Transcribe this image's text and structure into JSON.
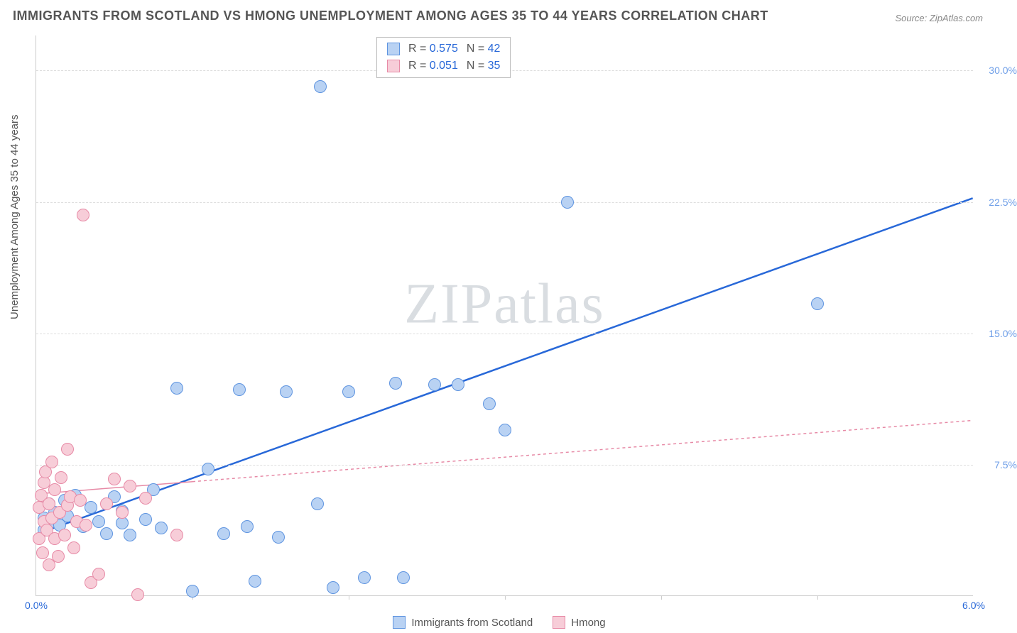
{
  "title": "IMMIGRANTS FROM SCOTLAND VS HMONG UNEMPLOYMENT AMONG AGES 35 TO 44 YEARS CORRELATION CHART",
  "source": "Source: ZipAtlas.com",
  "ylabel": "Unemployment Among Ages 35 to 44 years",
  "watermark_a": "ZIP",
  "watermark_b": "atlas",
  "chart": {
    "type": "scatter",
    "xlim": [
      0,
      6
    ],
    "ylim": [
      0,
      32
    ],
    "background_color": "#ffffff",
    "grid_color": "#dddddd",
    "axis_color": "#cccccc",
    "y_ticks": [
      {
        "v": 7.5,
        "label": "7.5%"
      },
      {
        "v": 15.0,
        "label": "15.0%"
      },
      {
        "v": 22.5,
        "label": "22.5%"
      },
      {
        "v": 30.0,
        "label": "30.0%"
      }
    ],
    "x_tick_marks": [
      1,
      2,
      3,
      4,
      5
    ],
    "x_labels": [
      {
        "v": 0,
        "label": "0.0%",
        "color": "#2868d8"
      },
      {
        "v": 6,
        "label": "6.0%",
        "color": "#2868d8"
      }
    ],
    "ytick_color": "#6f9fe8",
    "point_radius": 9,
    "series": [
      {
        "name": "Immigrants from Scotland",
        "fill": "#b9d2f3",
        "stroke": "#5e94e0",
        "line_color": "#2868d8",
        "line_dash": "none",
        "line_width": 2.5,
        "R": "0.575",
        "N": "42",
        "trend": {
          "x1": 0.0,
          "y1": 3.5,
          "x2": 6.0,
          "y2": 22.7
        },
        "points": [
          [
            0.05,
            5.2
          ],
          [
            0.05,
            4.5
          ],
          [
            0.08,
            6.0
          ],
          [
            0.1,
            5.0
          ],
          [
            0.12,
            5.5
          ],
          [
            0.15,
            4.8
          ],
          [
            0.18,
            6.2
          ],
          [
            0.2,
            5.3
          ],
          [
            0.25,
            6.5
          ],
          [
            0.3,
            4.7
          ],
          [
            0.35,
            5.8
          ],
          [
            0.4,
            5.0
          ],
          [
            0.45,
            4.3
          ],
          [
            0.5,
            6.4
          ],
          [
            0.55,
            4.9
          ],
          [
            0.55,
            5.6
          ],
          [
            0.6,
            4.2
          ],
          [
            0.7,
            5.1
          ],
          [
            0.75,
            6.8
          ],
          [
            0.8,
            4.6
          ],
          [
            0.9,
            12.6
          ],
          [
            1.0,
            1.0
          ],
          [
            1.1,
            8.0
          ],
          [
            1.2,
            4.3
          ],
          [
            1.3,
            12.5
          ],
          [
            1.35,
            4.7
          ],
          [
            1.4,
            1.6
          ],
          [
            1.55,
            4.1
          ],
          [
            1.6,
            12.4
          ],
          [
            1.8,
            6.0
          ],
          [
            1.82,
            29.8
          ],
          [
            1.9,
            1.2
          ],
          [
            2.0,
            12.4
          ],
          [
            2.1,
            1.8
          ],
          [
            2.3,
            12.9
          ],
          [
            2.35,
            1.8
          ],
          [
            2.55,
            12.8
          ],
          [
            2.7,
            12.8
          ],
          [
            2.9,
            11.7
          ],
          [
            3.0,
            10.2
          ],
          [
            3.4,
            23.2
          ],
          [
            5.0,
            17.4
          ]
        ]
      },
      {
        "name": "Hmong",
        "fill": "#f7cdd8",
        "stroke": "#e78aa6",
        "line_color": "#e78aa6",
        "line_dash": "4,4",
        "line_width": 1.5,
        "R": "0.051",
        "N": "35",
        "trend_solid_until": 1.0,
        "trend": {
          "x1": 0.0,
          "y1": 5.8,
          "x2": 6.0,
          "y2": 10.0
        },
        "points": [
          [
            0.02,
            5.8
          ],
          [
            0.02,
            4.0
          ],
          [
            0.03,
            6.5
          ],
          [
            0.04,
            3.2
          ],
          [
            0.05,
            7.2
          ],
          [
            0.05,
            5.0
          ],
          [
            0.06,
            7.8
          ],
          [
            0.07,
            4.5
          ],
          [
            0.08,
            6.0
          ],
          [
            0.08,
            2.5
          ],
          [
            0.1,
            8.4
          ],
          [
            0.1,
            5.2
          ],
          [
            0.12,
            4.0
          ],
          [
            0.12,
            6.8
          ],
          [
            0.14,
            3.0
          ],
          [
            0.15,
            5.5
          ],
          [
            0.16,
            7.5
          ],
          [
            0.18,
            4.2
          ],
          [
            0.2,
            5.9
          ],
          [
            0.2,
            9.1
          ],
          [
            0.22,
            6.4
          ],
          [
            0.24,
            3.5
          ],
          [
            0.26,
            5.0
          ],
          [
            0.28,
            6.2
          ],
          [
            0.3,
            22.5
          ],
          [
            0.32,
            4.8
          ],
          [
            0.35,
            1.5
          ],
          [
            0.4,
            2.0
          ],
          [
            0.45,
            6.0
          ],
          [
            0.5,
            7.4
          ],
          [
            0.55,
            5.5
          ],
          [
            0.6,
            7.0
          ],
          [
            0.65,
            0.8
          ],
          [
            0.7,
            6.3
          ],
          [
            0.9,
            4.2
          ]
        ]
      }
    ]
  },
  "legend": {
    "series1_label": "Immigrants from Scotland",
    "series2_label": "Hmong"
  }
}
